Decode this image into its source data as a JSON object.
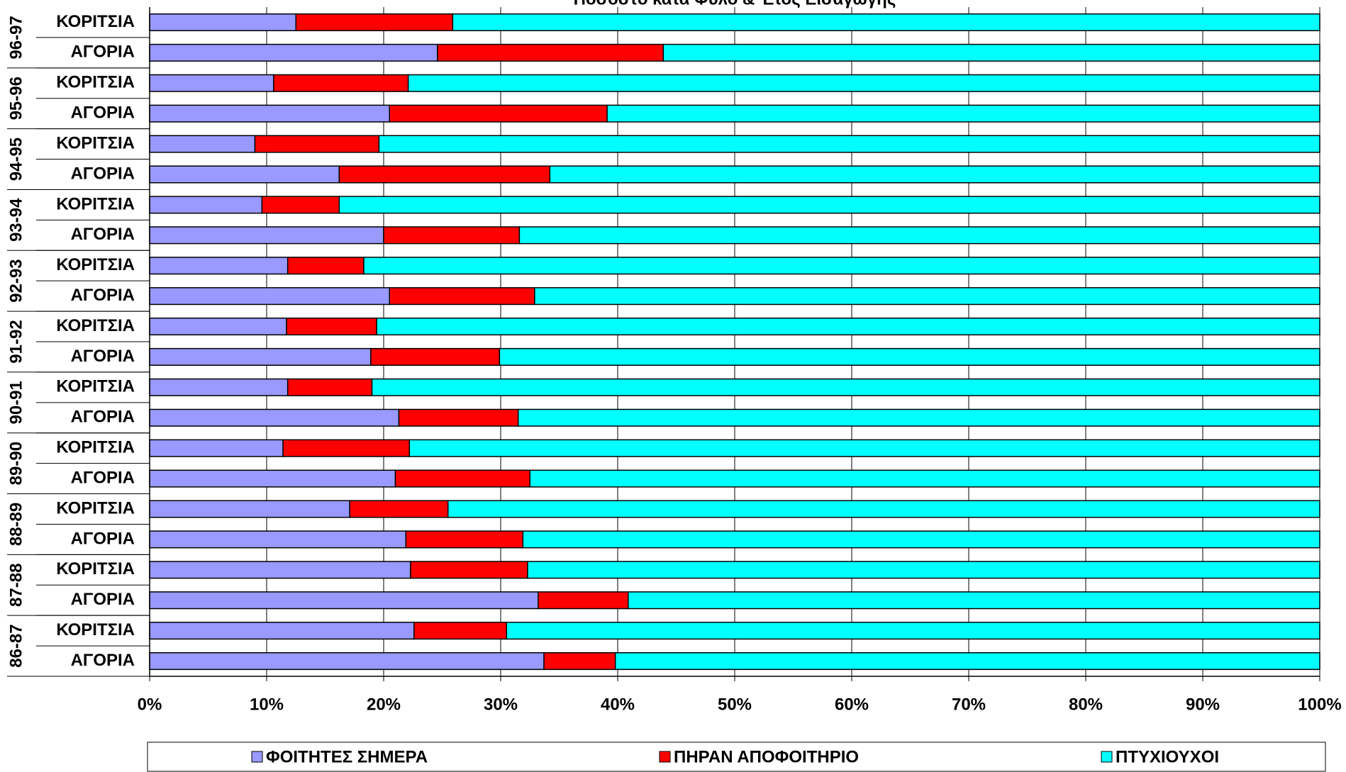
{
  "chart_data": {
    "type": "stacked-bar-horizontal",
    "title": "Ποσοστό κατά Φύλο & Έτος Εισαγωγής",
    "groups": [
      "96-97",
      "95-96",
      "94-95",
      "93-94",
      "92-93",
      "91-92",
      "90-91",
      "89-90",
      "88-89",
      "87-88",
      "86-87"
    ],
    "categories": [
      "ΚΟΡΙΤΣΙΑ",
      "ΑΓΟΡΙΑ",
      "ΚΟΡΙΤΣΙΑ",
      "ΑΓΟΡΙΑ",
      "ΚΟΡΙΤΣΙΑ",
      "ΑΓΟΡΙΑ",
      "ΚΟΡΙΤΣΙΑ",
      "ΑΓΟΡΙΑ",
      "ΚΟΡΙΤΣΙΑ",
      "ΑΓΟΡΙΑ",
      "ΚΟΡΙΤΣΙΑ",
      "ΑΓΟΡΙΑ",
      "ΚΟΡΙΤΣΙΑ",
      "ΑΓΟΡΙΑ",
      "ΚΟΡΙΤΣΙΑ",
      "ΑΓΟΡΙΑ",
      "ΚΟΡΙΤΣΙΑ",
      "ΑΓΟΡΙΑ",
      "ΚΟΡΙΤΣΙΑ",
      "ΑΓΟΡΙΑ",
      "ΚΟΡΙΤΣΙΑ",
      "ΑΓΟΡΙΑ"
    ],
    "series": [
      {
        "name": "ΦΟΙΤΗΤΕΣ ΣΗΜΕΡΑ",
        "color": "#9999ff",
        "values": [
          12.5,
          24.6,
          10.6,
          20.5,
          9.0,
          16.2,
          9.6,
          20.0,
          11.8,
          20.5,
          11.7,
          18.9,
          11.8,
          21.3,
          11.4,
          21.0,
          17.1,
          21.9,
          22.3,
          33.2,
          22.6,
          33.7
        ]
      },
      {
        "name": "ΠΗΡΑΝ ΑΠΟΦΟΙΤΗΡΙΟ",
        "color": "#ff0000",
        "values": [
          13.4,
          19.3,
          11.5,
          18.6,
          10.6,
          18.0,
          6.6,
          11.6,
          6.5,
          12.4,
          7.7,
          11.0,
          7.2,
          10.2,
          10.8,
          11.5,
          8.4,
          10.0,
          10.0,
          7.7,
          7.9,
          6.1
        ]
      },
      {
        "name": "ΠΤΥΧΙΟΥΧΟΙ",
        "color": "#00ffff",
        "values": [
          74.1,
          56.1,
          77.9,
          60.9,
          80.4,
          65.8,
          83.8,
          68.4,
          81.7,
          67.1,
          80.6,
          70.1,
          81.0,
          68.5,
          77.8,
          67.5,
          74.5,
          68.1,
          67.7,
          59.1,
          69.5,
          60.2
        ]
      }
    ],
    "xlim": [
      0,
      100
    ],
    "xticks": [
      {
        "value": 0,
        "label": "0%"
      },
      {
        "value": 10,
        "label": "10%"
      },
      {
        "value": 20,
        "label": "20%"
      },
      {
        "value": 30,
        "label": "30%"
      },
      {
        "value": 40,
        "label": "40%"
      },
      {
        "value": 50,
        "label": "50%"
      },
      {
        "value": 60,
        "label": "60%"
      },
      {
        "value": 70,
        "label": "70%"
      },
      {
        "value": 80,
        "label": "80%"
      },
      {
        "value": 90,
        "label": "90%"
      },
      {
        "value": 100,
        "label": "100%"
      }
    ],
    "grid": true
  }
}
